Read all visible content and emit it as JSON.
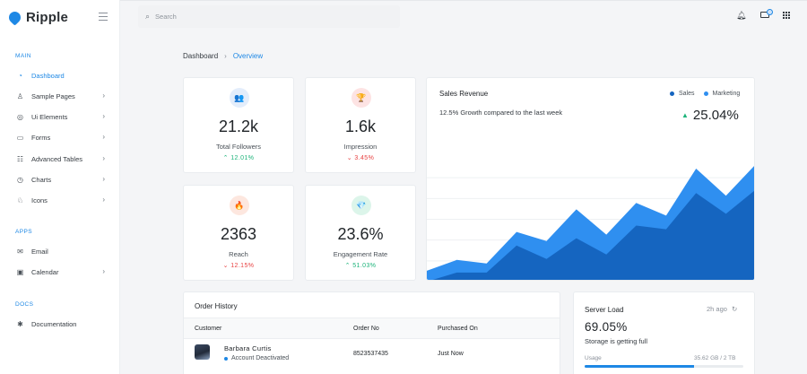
{
  "brand": {
    "name": "Ripple"
  },
  "sidebar": {
    "sections": [
      {
        "label": "MAIN",
        "items": [
          {
            "label": "Dashboard",
            "icon": "dashboard-icon",
            "glyph": "◔",
            "active": true,
            "chevron": false
          },
          {
            "label": "Sample Pages",
            "icon": "flask-icon",
            "glyph": "♙",
            "active": false,
            "chevron": true
          },
          {
            "label": "Ui Elements",
            "icon": "target-icon",
            "glyph": "◎",
            "active": false,
            "chevron": true
          },
          {
            "label": "Forms",
            "icon": "form-icon",
            "glyph": "▭",
            "active": false,
            "chevron": true
          },
          {
            "label": "Advanced Tables",
            "icon": "table-icon",
            "glyph": "☷",
            "active": false,
            "chevron": true
          },
          {
            "label": "Charts",
            "icon": "chart-pie-icon",
            "glyph": "◷",
            "active": false,
            "chevron": true
          },
          {
            "label": "Icons",
            "icon": "icons-icon",
            "glyph": "♘",
            "active": false,
            "chevron": true
          }
        ]
      },
      {
        "label": "APPS",
        "items": [
          {
            "label": "Email",
            "icon": "email-icon",
            "glyph": "✉",
            "active": false,
            "chevron": false
          },
          {
            "label": "Calendar",
            "icon": "calendar-icon",
            "glyph": "▣",
            "active": false,
            "chevron": true
          }
        ]
      },
      {
        "label": "DOCS",
        "items": [
          {
            "label": "Documentation",
            "icon": "asterisk-icon",
            "glyph": "✱",
            "active": false,
            "chevron": false
          }
        ]
      }
    ]
  },
  "header": {
    "search_placeholder": "Search",
    "icons": [
      "bell-icon",
      "chat-icon",
      "apps-grid-icon"
    ]
  },
  "breadcrumb": {
    "home": "Dashboard",
    "separator": "›",
    "current": "Overview"
  },
  "stats": [
    {
      "value": "21.2k",
      "label": "Total Followers",
      "change": "12.01%",
      "trend": "up",
      "icon": "users-icon",
      "glyph": "👥",
      "icon_bg": "#e3edfb",
      "icon_color": "#3d7bd9"
    },
    {
      "value": "1.6k",
      "label": "Impression",
      "change": "3.45%",
      "trend": "down",
      "icon": "trophy-icon",
      "glyph": "🏆",
      "icon_bg": "#fde3e3",
      "icon_color": "#e84343"
    },
    {
      "value": "2363",
      "label": "Reach",
      "change": "12.15%",
      "trend": "down",
      "icon": "flame-icon",
      "glyph": "🔥",
      "icon_bg": "#fde7df",
      "icon_color": "#ea6a3f"
    },
    {
      "value": "23.6%",
      "label": "Engagement Rate",
      "change": "51.03%",
      "trend": "up",
      "icon": "diamond-icon",
      "glyph": "💎",
      "icon_bg": "#dcf5ea",
      "icon_color": "#1db47a"
    }
  ],
  "revenue": {
    "title": "Sales Revenue",
    "subtitle": "12.5% Growth compared to the last week",
    "growth": "25.04%",
    "legend": [
      {
        "name": "Sales",
        "color": "#1565c0"
      },
      {
        "name": "Marketing",
        "color": "#2f8ff0"
      }
    ]
  },
  "chart_data": {
    "type": "area",
    "title": "",
    "xlabel": "",
    "ylabel": "",
    "grid": true,
    "legend": "top-right",
    "series": [
      {
        "name": "Sales",
        "color": "#1565c0",
        "values": [
          0,
          10,
          10,
          40,
          25,
          48,
          30,
          62,
          58,
          98,
          75,
          102
        ]
      },
      {
        "name": "Marketing",
        "color": "#2f8ff0",
        "values": [
          12,
          24,
          20,
          55,
          45,
          80,
          52,
          87,
          73,
          125,
          95,
          130
        ]
      }
    ],
    "ylim": [
      0,
      130
    ]
  },
  "orders": {
    "title": "Order History",
    "columns": [
      "Customer",
      "Order No",
      "Purchased On"
    ],
    "rows": [
      {
        "customer": "Barbara Curtis",
        "status": "Account Deactivated",
        "order_no": "8523537435",
        "purchased": "Just Now"
      }
    ]
  },
  "server": {
    "title": "Server Load",
    "time": "2h ago",
    "percent": "69.05%",
    "subtitle": "Storage is getting full",
    "usage_label": "Usage",
    "usage_value": "35.62 GB / 2 TB",
    "usage_fraction": 0.69
  }
}
